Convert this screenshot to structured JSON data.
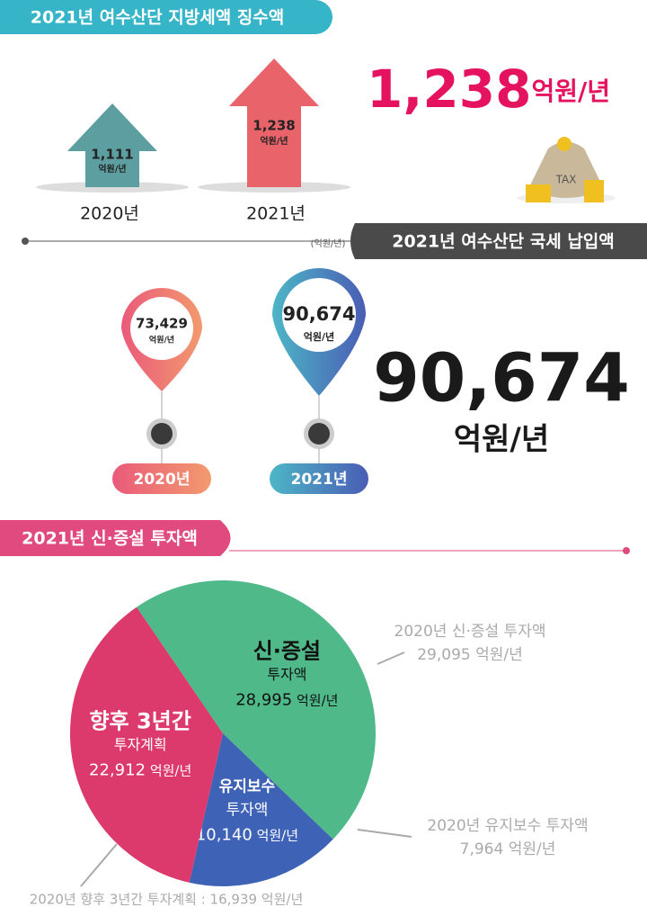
{
  "section1": {
    "title": "2021년 여수산단 지방세액 징수액",
    "bars": [
      {
        "value": "1,111",
        "unit": "억원/년",
        "label": "2020년"
      },
      {
        "value": "1,238",
        "unit": "억원/년",
        "label": "2021년"
      }
    ],
    "highlight": {
      "value": "1,238",
      "unit": "억원/년"
    },
    "icon_label": "TAX"
  },
  "section2": {
    "title": "2021년 여수산단 국세 납입액",
    "unit_note": "(억원/년)",
    "pins": [
      {
        "value": "73,429",
        "unit": "억원/년",
        "label": "2020년"
      },
      {
        "value": "90,674",
        "unit": "억원/년",
        "label": "2021년"
      }
    ],
    "highlight": {
      "value": "90,674",
      "unit": "억원/년"
    }
  },
  "section3": {
    "title": "2021년 신·증설 투자액",
    "chart_data": {
      "type": "pie",
      "categories": [
        "신·증설",
        "유지보수",
        "향후 3년간"
      ],
      "subcategories": [
        "투자액",
        "투자액",
        "투자계획"
      ],
      "values": [
        28995,
        10140,
        22912
      ],
      "value_labels": [
        "28,995",
        "10,140",
        "22,912"
      ],
      "unit": "억원/년",
      "colors": [
        "#4fb98a",
        "#3e62b5",
        "#dc3a6c"
      ]
    },
    "annotations": [
      {
        "label": "2020년 신·증설 투자액",
        "value": "29,095 억원/년"
      },
      {
        "label": "2020년 유지보수 투자액",
        "value": "7,964 억원/년"
      },
      {
        "label": "2020년 향후 3년간 투자계획 : 16,939 억원/년"
      }
    ]
  }
}
